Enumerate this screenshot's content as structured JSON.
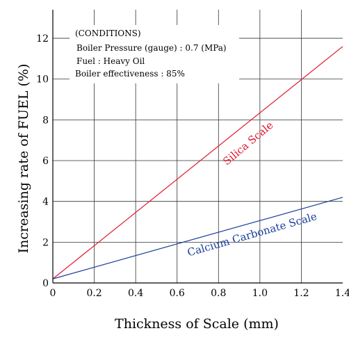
{
  "chart_data": {
    "type": "line",
    "xlabel": "Thickness of Scale (mm)",
    "ylabel": "Increasing rate of FUEL (%)",
    "xlim": [
      0,
      1.4
    ],
    "ylim": [
      0,
      13.4
    ],
    "x_ticks": [
      "0",
      "0.2",
      "0.4",
      "0.6",
      "0.8",
      "1.0",
      "1.2",
      "1.4"
    ],
    "y_ticks": [
      "0",
      "2",
      "4",
      "6",
      "8",
      "10",
      "12"
    ],
    "grid": true,
    "series": [
      {
        "name": "Silica Scale",
        "color": "#e0142c",
        "x": [
          0,
          1.4
        ],
        "y": [
          0.2,
          11.6
        ]
      },
      {
        "name": "Calcium Carbonate Scale",
        "color": "#1a3d9c",
        "x": [
          0,
          1.4
        ],
        "y": [
          0.2,
          4.2
        ]
      }
    ],
    "annotation": {
      "heading": "(CONDITIONS)",
      "heading_color": "#e0142c",
      "lines": [
        "Boiler Pressure (gauge) : 0.7 (MPa)",
        "Fuel : Heavy Oil",
        "Boiler effectiveness : 85%"
      ]
    }
  }
}
